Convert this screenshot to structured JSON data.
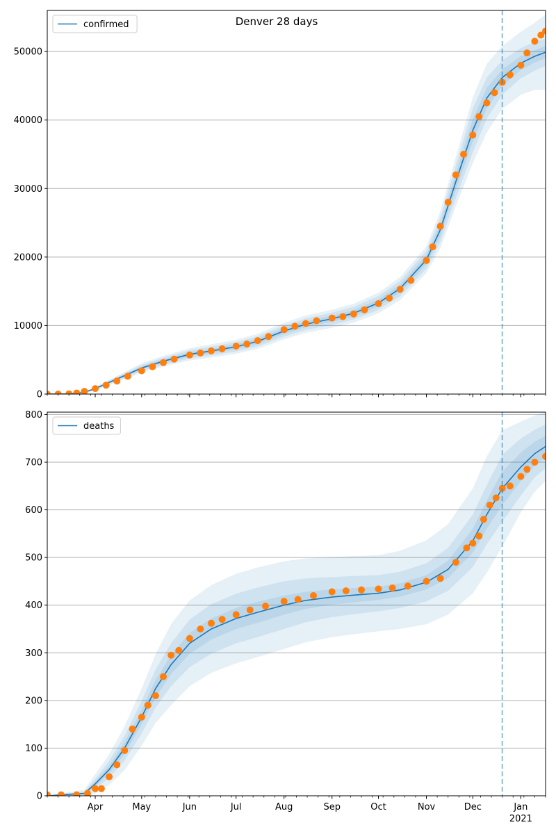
{
  "figure_title": "Denver 28 days",
  "x_tick_labels": [
    "Apr",
    "May",
    "Jun",
    "Jul",
    "Aug",
    "Sep",
    "Oct",
    "Nov",
    "Dec",
    "Jan"
  ],
  "x_tick_sublabel": "2021",
  "colors": {
    "model_line": "#1f77b4",
    "observed": "#ff7f0e",
    "band": "#1f77b4",
    "grid": "#b0b0b0",
    "forecast_divider": "#1f77b4"
  },
  "chart_data": [
    {
      "type": "line",
      "name": "confirmed",
      "legend": "confirmed",
      "legend_placement": "top-left",
      "grid": "horizontal",
      "xlim": [
        "2020-03-01",
        "2021-01-17"
      ],
      "ylim": [
        0,
        56000
      ],
      "y_ticks": [
        0,
        10000,
        20000,
        30000,
        40000,
        50000
      ],
      "forecast_start": "2020-12-20",
      "model": {
        "dates": [
          "2020-03-01",
          "2020-03-15",
          "2020-03-25",
          "2020-04-01",
          "2020-04-15",
          "2020-05-01",
          "2020-05-15",
          "2020-06-01",
          "2020-06-15",
          "2020-07-01",
          "2020-07-15",
          "2020-08-01",
          "2020-08-15",
          "2020-09-01",
          "2020-09-15",
          "2020-10-01",
          "2020-10-15",
          "2020-11-01",
          "2020-11-10",
          "2020-11-20",
          "2020-12-01",
          "2020-12-10",
          "2020-12-20",
          "2021-01-01",
          "2021-01-10",
          "2021-01-17"
        ],
        "values": [
          0,
          20,
          250,
          800,
          2200,
          3800,
          4800,
          5800,
          6300,
          6900,
          7700,
          9200,
          10200,
          11000,
          11800,
          13300,
          15400,
          19600,
          24000,
          31000,
          38500,
          43200,
          46200,
          48300,
          49300,
          49900
        ],
        "band_half_widths": {
          "inner": [
            0,
            10,
            40,
            80,
            150,
            220,
            260,
            300,
            320,
            340,
            370,
            400,
            420,
            440,
            460,
            500,
            560,
            650,
            900,
            1200,
            1600,
            1500,
            1200,
            1000,
            900,
            900
          ],
          "middle": [
            0,
            20,
            80,
            160,
            300,
            450,
            520,
            600,
            640,
            680,
            740,
            800,
            840,
            880,
            920,
            1000,
            1120,
            1300,
            1800,
            2400,
            3200,
            3000,
            2500,
            2200,
            2100,
            2000
          ],
          "outer": [
            0,
            30,
            120,
            240,
            450,
            680,
            780,
            900,
            960,
            1020,
            1110,
            1200,
            1260,
            1320,
            1380,
            1500,
            1680,
            1950,
            2700,
            3600,
            4800,
            5000,
            4600,
            4600,
            4900,
            5500
          ]
        }
      },
      "observed": {
        "dates": [
          "2020-03-01",
          "2020-03-08",
          "2020-03-15",
          "2020-03-20",
          "2020-03-25",
          "2020-04-01",
          "2020-04-08",
          "2020-04-15",
          "2020-04-22",
          "2020-05-01",
          "2020-05-08",
          "2020-05-15",
          "2020-05-22",
          "2020-06-01",
          "2020-06-08",
          "2020-06-15",
          "2020-06-22",
          "2020-07-01",
          "2020-07-08",
          "2020-07-15",
          "2020-07-22",
          "2020-08-01",
          "2020-08-08",
          "2020-08-15",
          "2020-08-22",
          "2020-09-01",
          "2020-09-08",
          "2020-09-15",
          "2020-09-22",
          "2020-10-01",
          "2020-10-08",
          "2020-10-15",
          "2020-10-22",
          "2020-11-01",
          "2020-11-05",
          "2020-11-10",
          "2020-11-15",
          "2020-11-20",
          "2020-11-25",
          "2020-12-01",
          "2020-12-05",
          "2020-12-10",
          "2020-12-15",
          "2020-12-20",
          "2020-12-25",
          "2021-01-01",
          "2021-01-05",
          "2021-01-10",
          "2021-01-14",
          "2021-01-17"
        ],
        "values": [
          0,
          0,
          30,
          150,
          400,
          800,
          1300,
          1900,
          2600,
          3400,
          4000,
          4600,
          5100,
          5700,
          6000,
          6300,
          6600,
          7000,
          7300,
          7800,
          8400,
          9400,
          9900,
          10300,
          10700,
          11100,
          11300,
          11700,
          12300,
          13200,
          14000,
          15300,
          16600,
          19500,
          21500,
          24500,
          28000,
          32000,
          35000,
          37800,
          40500,
          42500,
          44000,
          45500,
          46600,
          48000,
          49800,
          51500,
          52400,
          53000
        ]
      }
    },
    {
      "type": "line",
      "name": "deaths",
      "legend": "deaths",
      "legend_placement": "top-left",
      "grid": "horizontal",
      "xlim": [
        "2020-03-01",
        "2021-01-17"
      ],
      "ylim": [
        0,
        805
      ],
      "y_ticks": [
        0,
        100,
        200,
        300,
        400,
        500,
        600,
        700,
        800
      ],
      "forecast_start": "2020-12-20",
      "model": {
        "dates": [
          "2020-03-01",
          "2020-03-25",
          "2020-04-01",
          "2020-04-10",
          "2020-04-20",
          "2020-05-01",
          "2020-05-10",
          "2020-05-20",
          "2020-06-01",
          "2020-06-15",
          "2020-07-01",
          "2020-07-15",
          "2020-08-01",
          "2020-08-15",
          "2020-09-01",
          "2020-09-15",
          "2020-10-01",
          "2020-10-15",
          "2020-11-01",
          "2020-11-15",
          "2020-12-01",
          "2020-12-10",
          "2020-12-20",
          "2021-01-01",
          "2021-01-10",
          "2021-01-17"
        ],
        "values": [
          0,
          5,
          25,
          55,
          100,
          165,
          225,
          275,
          320,
          350,
          372,
          385,
          400,
          410,
          417,
          421,
          425,
          432,
          448,
          475,
          535,
          590,
          645,
          690,
          718,
          733
        ],
        "band_half_widths": {
          "inner": [
            0,
            2,
            5,
            8,
            12,
            15,
            18,
            20,
            22,
            22,
            22,
            22,
            20,
            18,
            16,
            15,
            14,
            14,
            15,
            18,
            25,
            30,
            35,
            30,
            25,
            22
          ],
          "middle": [
            0,
            4,
            10,
            18,
            26,
            34,
            40,
            45,
            50,
            52,
            52,
            52,
            50,
            46,
            42,
            40,
            38,
            38,
            40,
            45,
            55,
            62,
            70,
            60,
            50,
            46
          ],
          "outer": [
            0,
            8,
            20,
            32,
            46,
            60,
            72,
            85,
            90,
            92,
            94,
            94,
            92,
            88,
            84,
            82,
            80,
            82,
            88,
            95,
            110,
            122,
            122,
            95,
            80,
            72
          ]
        }
      },
      "observed": {
        "dates": [
          "2020-03-01",
          "2020-03-10",
          "2020-03-20",
          "2020-03-27",
          "2020-04-01",
          "2020-04-05",
          "2020-04-10",
          "2020-04-15",
          "2020-04-20",
          "2020-04-25",
          "2020-05-01",
          "2020-05-05",
          "2020-05-10",
          "2020-05-15",
          "2020-05-20",
          "2020-05-25",
          "2020-06-01",
          "2020-06-08",
          "2020-06-15",
          "2020-06-22",
          "2020-07-01",
          "2020-07-10",
          "2020-07-20",
          "2020-08-01",
          "2020-08-10",
          "2020-08-20",
          "2020-09-01",
          "2020-09-10",
          "2020-09-20",
          "2020-10-01",
          "2020-10-10",
          "2020-10-20",
          "2020-11-01",
          "2020-11-10",
          "2020-11-20",
          "2020-11-27",
          "2020-12-01",
          "2020-12-05",
          "2020-12-08",
          "2020-12-12",
          "2020-12-16",
          "2020-12-20",
          "2020-12-25",
          "2021-01-01",
          "2021-01-05",
          "2021-01-10",
          "2021-01-17"
        ],
        "values": [
          2,
          2,
          2,
          5,
          15,
          15,
          40,
          65,
          95,
          140,
          165,
          190,
          210,
          250,
          295,
          305,
          330,
          350,
          362,
          370,
          380,
          390,
          398,
          408,
          412,
          420,
          428,
          430,
          432,
          434,
          436,
          440,
          450,
          456,
          490,
          520,
          530,
          545,
          580,
          610,
          625,
          645,
          650,
          670,
          685,
          700,
          712
        ]
      }
    }
  ]
}
